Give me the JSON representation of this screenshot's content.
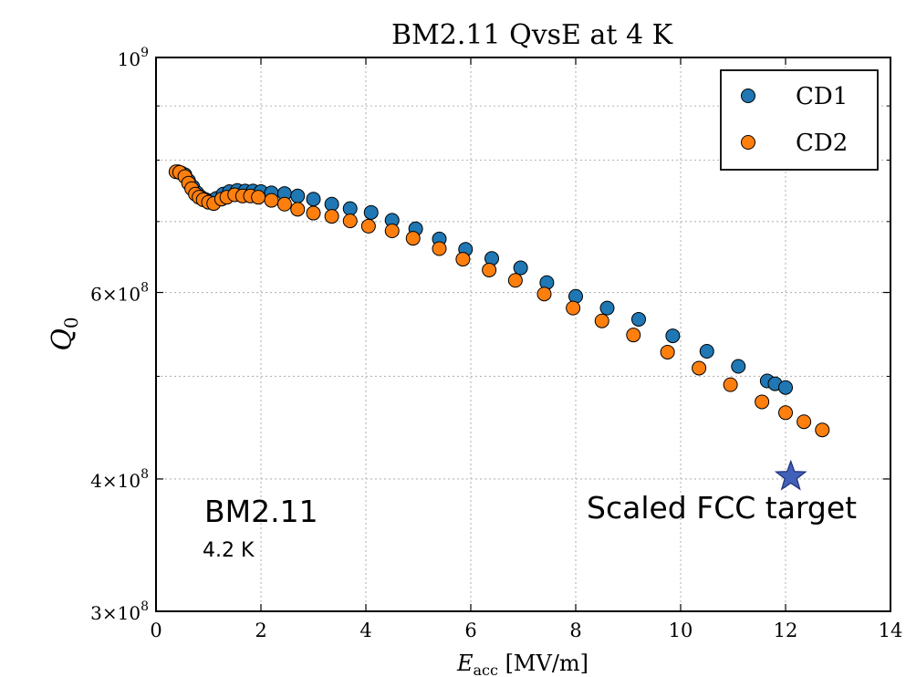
{
  "chart_data": {
    "type": "scatter",
    "title": "BM2.11 QvsE at 4 K",
    "xlabel": "E",
    "xlabel_sub": "acc",
    "xlabel_unit": " [MV/m]",
    "ylabel": "Q",
    "ylabel_sub": "0",
    "xlim": [
      0,
      14
    ],
    "ylim": [
      300000000,
      1000000000
    ],
    "yscale": "log",
    "grid": true,
    "legend_position": "top-right",
    "x_ticks": [
      0,
      2,
      4,
      6,
      8,
      10,
      12,
      14
    ],
    "y_ticks": [
      {
        "value": 1000000000,
        "mant": "",
        "exp": "9",
        "base": "10"
      },
      {
        "value": 600000000,
        "mant": "6",
        "exp": "8",
        "base": "10"
      },
      {
        "value": 400000000,
        "mant": "4",
        "exp": "8",
        "base": "10"
      },
      {
        "value": 300000000,
        "mant": "3",
        "exp": "8",
        "base": "10"
      }
    ],
    "y_minor_ticks": [
      900000000,
      800000000,
      700000000,
      500000000
    ],
    "series": [
      {
        "name": "CD1",
        "color": "#1f77b4",
        "points": [
          [
            0.42,
            780000000
          ],
          [
            0.48,
            778000000
          ],
          [
            0.55,
            775000000
          ],
          [
            0.62,
            765000000
          ],
          [
            0.7,
            755000000
          ],
          [
            0.78,
            745000000
          ],
          [
            0.86,
            738000000
          ],
          [
            0.95,
            734000000
          ],
          [
            1.05,
            732000000
          ],
          [
            1.15,
            736000000
          ],
          [
            1.28,
            743000000
          ],
          [
            1.4,
            747000000
          ],
          [
            1.55,
            749000000
          ],
          [
            1.7,
            748000000
          ],
          [
            1.85,
            748000000
          ],
          [
            2.0,
            747000000
          ],
          [
            2.2,
            745000000
          ],
          [
            2.45,
            744000000
          ],
          [
            2.7,
            740000000
          ],
          [
            3.0,
            735000000
          ],
          [
            3.35,
            727000000
          ],
          [
            3.7,
            720000000
          ],
          [
            4.1,
            714000000
          ],
          [
            4.5,
            702000000
          ],
          [
            4.95,
            689000000
          ],
          [
            5.4,
            674000000
          ],
          [
            5.9,
            659000000
          ],
          [
            6.4,
            646000000
          ],
          [
            6.95,
            633000000
          ],
          [
            7.45,
            613000000
          ],
          [
            8.0,
            595000000
          ],
          [
            8.6,
            580000000
          ],
          [
            9.2,
            566000000
          ],
          [
            9.85,
            546000000
          ],
          [
            10.5,
            528000000
          ],
          [
            11.1,
            511000000
          ],
          [
            11.65,
            495000000
          ],
          [
            11.8,
            492000000
          ],
          [
            12.0,
            488000000
          ]
        ]
      },
      {
        "name": "CD2",
        "color": "#ff7f0e",
        "points": [
          [
            0.38,
            780000000
          ],
          [
            0.45,
            779000000
          ],
          [
            0.55,
            772000000
          ],
          [
            0.62,
            761000000
          ],
          [
            0.68,
            752000000
          ],
          [
            0.75,
            743000000
          ],
          [
            0.82,
            738000000
          ],
          [
            0.9,
            734000000
          ],
          [
            1.0,
            730000000
          ],
          [
            1.1,
            728000000
          ],
          [
            1.25,
            735000000
          ],
          [
            1.35,
            738000000
          ],
          [
            1.5,
            742000000
          ],
          [
            1.65,
            740000000
          ],
          [
            1.8,
            740000000
          ],
          [
            1.95,
            738000000
          ],
          [
            2.2,
            733000000
          ],
          [
            2.45,
            727000000
          ],
          [
            2.7,
            719000000
          ],
          [
            3.0,
            713000000
          ],
          [
            3.35,
            708000000
          ],
          [
            3.7,
            701000000
          ],
          [
            4.05,
            693000000
          ],
          [
            4.5,
            686000000
          ],
          [
            4.9,
            675000000
          ],
          [
            5.4,
            660000000
          ],
          [
            5.85,
            645000000
          ],
          [
            6.35,
            630000000
          ],
          [
            6.85,
            616000000
          ],
          [
            7.4,
            598000000
          ],
          [
            7.95,
            580000000
          ],
          [
            8.5,
            564000000
          ],
          [
            9.1,
            547000000
          ],
          [
            9.75,
            527000000
          ],
          [
            10.35,
            509000000
          ],
          [
            10.95,
            491000000
          ],
          [
            11.55,
            473000000
          ],
          [
            12.0,
            462000000
          ],
          [
            12.35,
            453000000
          ],
          [
            12.7,
            445000000
          ]
        ]
      }
    ],
    "target": {
      "x": 12.1,
      "y": 402000000,
      "color": "#4160b8",
      "label": "Scaled FCC target"
    },
    "annotation": {
      "name": "BM2.11",
      "temperature": "4.2 K"
    }
  }
}
